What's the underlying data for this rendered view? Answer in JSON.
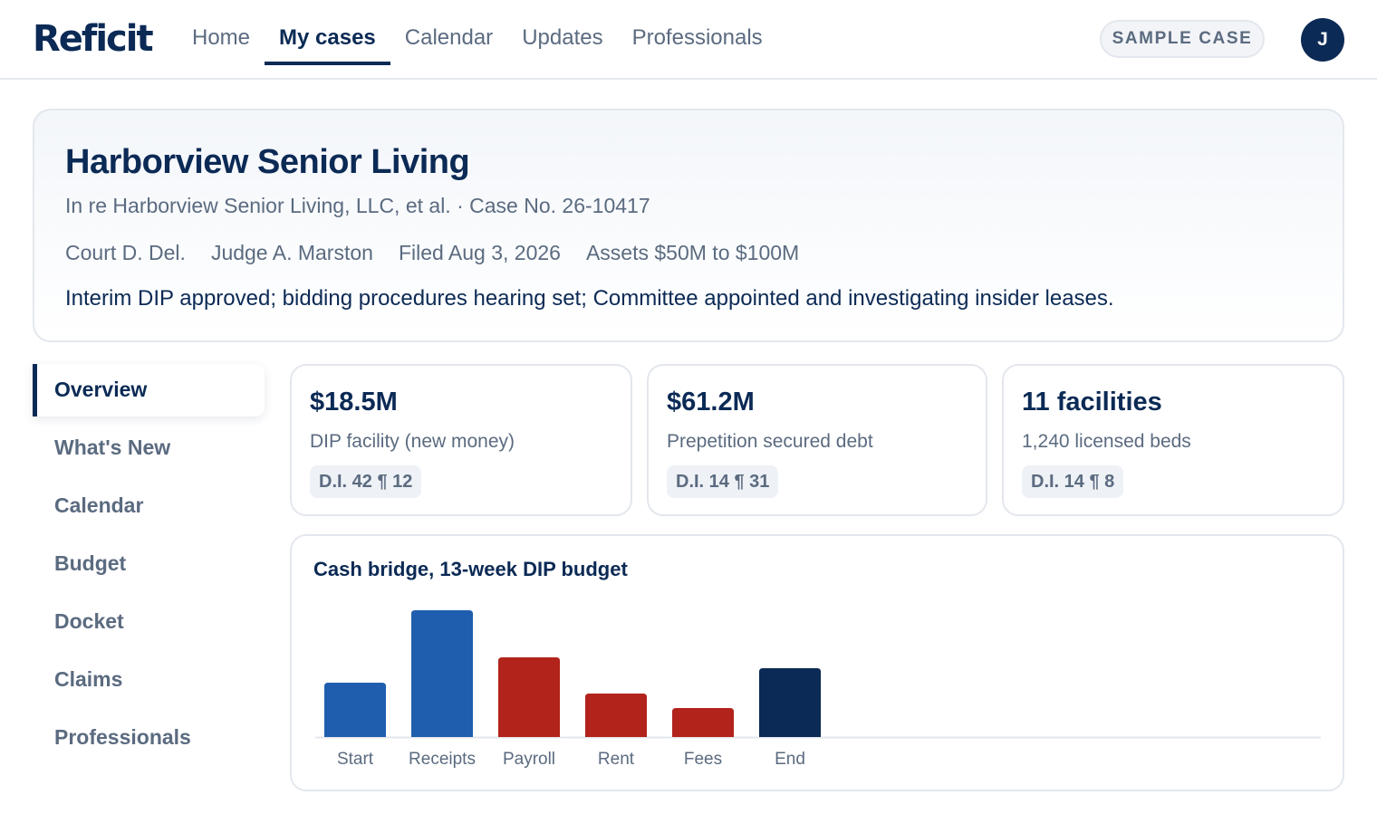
{
  "header": {
    "logo_text": "Reficit",
    "nav": [
      {
        "label": "Home",
        "active": false
      },
      {
        "label": "My cases",
        "active": true
      },
      {
        "label": "Calendar",
        "active": false
      },
      {
        "label": "Updates",
        "active": false
      },
      {
        "label": "Professionals",
        "active": false
      }
    ],
    "sample_badge": "SAMPLE CASE",
    "avatar_initial": "J"
  },
  "case": {
    "title": "Harborview Senior Living",
    "subtitle": "In re Harborview Senior Living, LLC, et al. · Case No. 26-10417",
    "court": "Court D. Del.",
    "judge": "Judge A. Marston",
    "filed": "Filed Aug 3, 2026",
    "assets": "Assets $50M to $100M",
    "summary": "Interim DIP approved; bidding procedures hearing set; Committee appointed and investigating insider leases."
  },
  "sidebar": {
    "items": [
      {
        "label": "Overview",
        "active": true
      },
      {
        "label": "What's New",
        "active": false
      },
      {
        "label": "Calendar",
        "active": false
      },
      {
        "label": "Budget",
        "active": false
      },
      {
        "label": "Docket",
        "active": false
      },
      {
        "label": "Claims",
        "active": false
      },
      {
        "label": "Professionals",
        "active": false
      }
    ]
  },
  "stats": [
    {
      "value": "$18.5M",
      "label": "DIP facility (new money)",
      "cite": "D.I. 42 ¶ 12"
    },
    {
      "value": "$61.2M",
      "label": "Prepetition secured debt",
      "cite": "D.I. 14 ¶ 31"
    },
    {
      "value": "11 facilities",
      "label": "1,240 licensed beds",
      "cite": "D.I. 14 ¶ 8"
    }
  ],
  "chart_data": {
    "type": "bar",
    "title": "Cash bridge, 13-week DIP budget",
    "categories": [
      "Start",
      "Receipts",
      "Payroll",
      "Rent",
      "Fees",
      "End"
    ],
    "values": [
      60,
      140,
      88,
      48,
      32,
      76
    ],
    "bar_colors": [
      "#1f5eae",
      "#1f5eae",
      "#b2231b",
      "#b2231b",
      "#b2231b",
      "#0b2a55"
    ],
    "ylim": [
      0,
      140
    ],
    "grid": false,
    "legend": "none"
  },
  "colors": {
    "brand": "#0b2a55",
    "muted_text": "#5b6b80",
    "inflow": "#1f5eae",
    "outflow": "#b2231b",
    "border": "#e3e7ed"
  }
}
